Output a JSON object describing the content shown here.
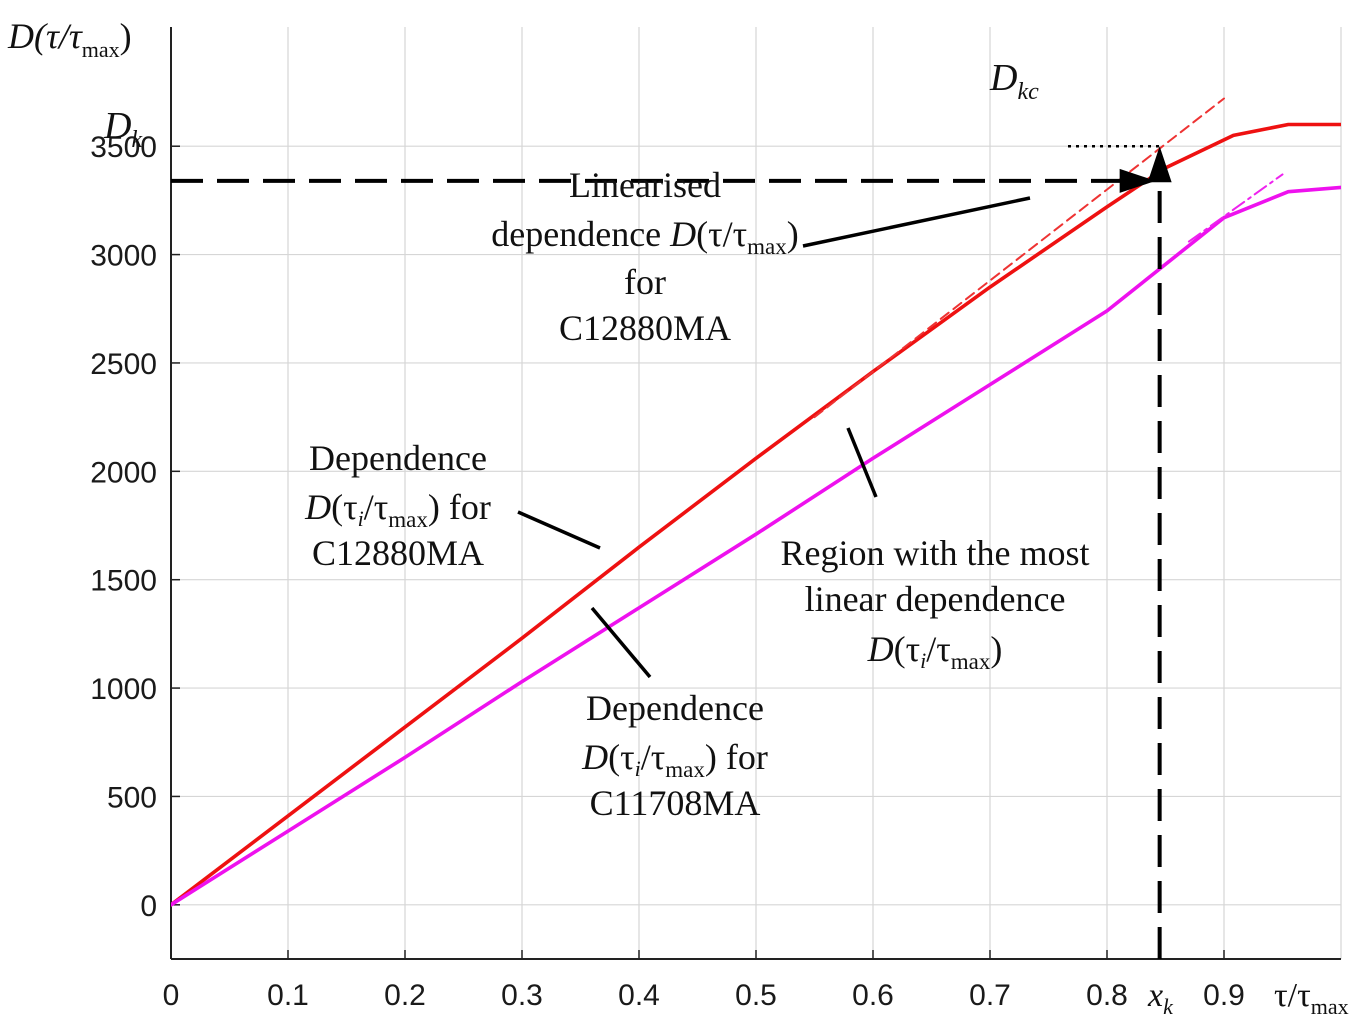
{
  "chart_data": {
    "type": "line",
    "title": "",
    "ylabel": {
      "main": "D(τ/τ",
      "sub": "max",
      "close": ")"
    },
    "xlabel": {
      "main": "τ/τ",
      "sub": "max"
    },
    "xlim": [
      0,
      1.0
    ],
    "ylim": [
      -250,
      4050
    ],
    "x_ticks": [
      "0",
      "0.1",
      "0.2",
      "0.3",
      "0.4",
      "0.5",
      "0.6",
      "0.7",
      "0.8",
      "0.9"
    ],
    "x_tick_values": [
      0,
      0.1,
      0.2,
      0.3,
      0.4,
      0.5,
      0.6,
      0.7,
      0.8,
      0.9
    ],
    "y_ticks": [
      "0",
      "500",
      "1000",
      "1500",
      "2000",
      "2500",
      "3000",
      "3500"
    ],
    "y_tick_values": [
      0,
      500,
      1000,
      1500,
      2000,
      2500,
      3000,
      3500
    ],
    "grid": true,
    "series": [
      {
        "name": "C12880MA",
        "color": "#ee1111",
        "style": "solid",
        "x": [
          0,
          0.1,
          0.2,
          0.3,
          0.4,
          0.5,
          0.6,
          0.7,
          0.8,
          0.85,
          0.908,
          0.955,
          1.0
        ],
        "y": [
          0,
          410,
          820,
          1230,
          1650,
          2060,
          2460,
          2850,
          3220,
          3400,
          3550,
          3600,
          3600
        ]
      },
      {
        "name": "C11708MA",
        "color": "#ee11ee",
        "style": "solid",
        "x": [
          0,
          0.1,
          0.2,
          0.3,
          0.4,
          0.5,
          0.6,
          0.7,
          0.8,
          0.9,
          0.955,
          1.0
        ],
        "y": [
          0,
          340,
          680,
          1030,
          1370,
          1710,
          2060,
          2400,
          2740,
          3170,
          3290,
          3310
        ]
      },
      {
        "name": "Linearised dependence C12880MA",
        "color": "#ee3333",
        "style": "dashed",
        "x": [
          0.55,
          0.9
        ],
        "y": [
          2250,
          3720
        ]
      },
      {
        "name": "Linearised dependence C11708MA",
        "color": "#ee22ee",
        "style": "dashdot",
        "x": [
          0.87,
          0.95
        ],
        "y": [
          3060,
          3370
        ]
      }
    ],
    "markers": {
      "x_k": 0.845,
      "D_k": 3340,
      "D_kc": 3500
    },
    "annotations": {
      "linearised": {
        "line1": "Linearised",
        "line2_a": "dependence ",
        "line2_b": "D",
        "line2_c": "(τ/τ",
        "line2_sub": "max",
        "line2_d": ")",
        "line3": "for",
        "line4": "C12880MA"
      },
      "dep_c12880": {
        "line1": "Dependence",
        "l2_a": "D",
        "l2_b": "(τ",
        "l2_i": "i",
        "l2_c": "/τ",
        "l2_sub": "max",
        "l2_d": ")  for",
        "line3": "C12880MA"
      },
      "dep_c11708": {
        "line1": "Dependence",
        "l2_a": "D",
        "l2_b": "(τ",
        "l2_i": "i",
        "l2_c": "/τ",
        "l2_sub": "max",
        "l2_d": ")  for",
        "line3": "C11708MA"
      },
      "region": {
        "line1": "Region with the most",
        "line2": "linear dependence",
        "l3_a": "D",
        "l3_b": "(τ",
        "l3_i": "i",
        "l3_c": "/τ",
        "l3_sub": "max",
        "l3_d": ")"
      },
      "dk": {
        "main": "D",
        "sub": "k"
      },
      "dkc": {
        "main": "D",
        "sub": "kc"
      },
      "xk": {
        "main": "x",
        "sub": "k"
      }
    }
  }
}
